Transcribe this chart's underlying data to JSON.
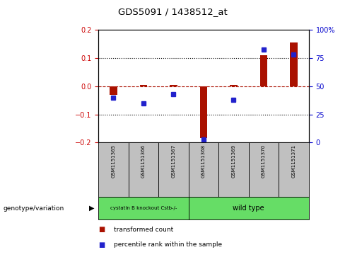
{
  "title": "GDS5091 / 1438512_at",
  "samples": [
    "GSM1151365",
    "GSM1151366",
    "GSM1151367",
    "GSM1151368",
    "GSM1151369",
    "GSM1151370",
    "GSM1151371"
  ],
  "red_values": [
    -0.03,
    0.005,
    0.005,
    -0.185,
    0.005,
    0.11,
    0.155
  ],
  "blue_values_pct": [
    40,
    35,
    43,
    3,
    38,
    82,
    78
  ],
  "ylim": [
    -0.2,
    0.2
  ],
  "y2lim": [
    0,
    100
  ],
  "y_ticks": [
    -0.2,
    -0.1,
    0.0,
    0.1,
    0.2
  ],
  "y2_ticks": [
    0,
    25,
    50,
    75,
    100
  ],
  "y2_labels": [
    "0",
    "25",
    "50",
    "75",
    "100%"
  ],
  "group1_label": "cystatin B knockout Cstb-/-",
  "group2_label": "wild type",
  "group1_count": 3,
  "legend_red": "transformed count",
  "legend_blue": "percentile rank within the sample",
  "bar_width": 0.25,
  "red_color": "#aa1100",
  "blue_color": "#2222cc",
  "group1_color": "#66dd66",
  "group2_color": "#66dd66",
  "gray_color": "#c0c0c0",
  "ylabel_left_color": "#cc0000",
  "ylabel_right_color": "#0000cc",
  "bg_color": "#ffffff"
}
